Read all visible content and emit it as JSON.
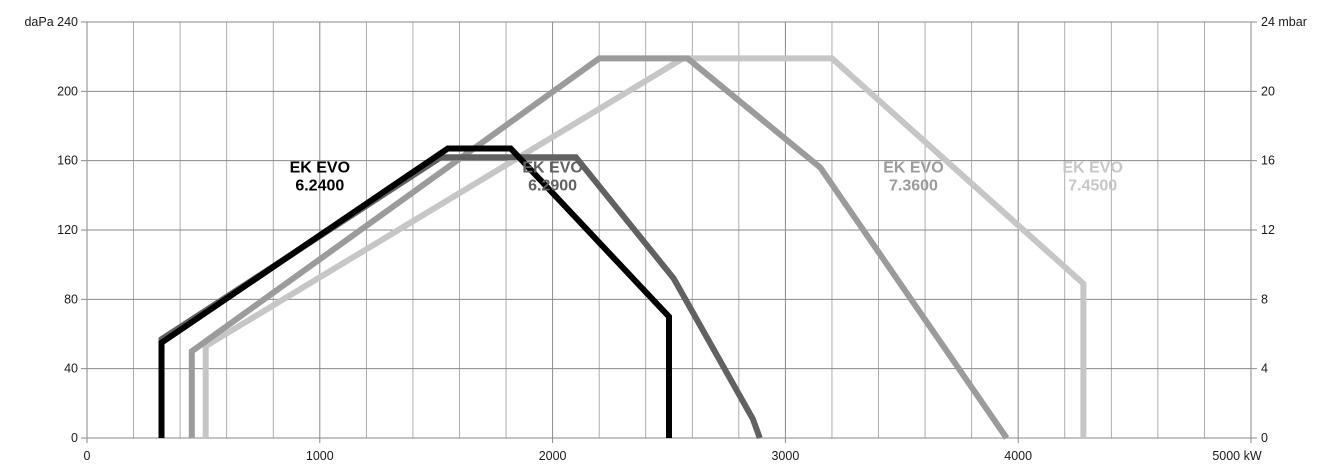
{
  "chart_data": {
    "type": "line",
    "title": "",
    "x_axis": {
      "range": [
        0,
        5000
      ],
      "ticks": [
        0,
        1000,
        2000,
        3000,
        4000,
        5000
      ],
      "tick_labels": [
        "0",
        "1000",
        "2000",
        "3000",
        "4000",
        "5000 kW"
      ],
      "minor_step": 200
    },
    "y_axis_left": {
      "range": [
        0,
        240
      ],
      "ticks": [
        0,
        40,
        80,
        120,
        160,
        200,
        240
      ],
      "tick_labels": [
        "0",
        "40",
        "80",
        "120",
        "160",
        "200",
        "daPa 240"
      ]
    },
    "y_axis_right": {
      "range": [
        0,
        24
      ],
      "ticks": [
        0,
        4,
        8,
        12,
        16,
        20,
        24
      ],
      "tick_labels": [
        "0",
        "4",
        "8",
        "12",
        "16",
        "20",
        "24 mbar"
      ]
    },
    "grid": true,
    "series": [
      {
        "name": "EK EVO 6.2400",
        "label_lines": [
          "EK EVO",
          "6.2400"
        ],
        "color": "#000000",
        "points": [
          [
            320,
            0
          ],
          [
            320,
            55
          ],
          [
            1550,
            167
          ],
          [
            1820,
            167
          ],
          [
            2500,
            70
          ],
          [
            2500,
            0
          ]
        ]
      },
      {
        "name": "EK EVO 6.2900",
        "label_lines": [
          "EK EVO",
          "6.2900"
        ],
        "color": "#616161",
        "points": [
          [
            320,
            0
          ],
          [
            320,
            57
          ],
          [
            1520,
            162
          ],
          [
            2100,
            162
          ],
          [
            2520,
            92
          ],
          [
            2860,
            11
          ],
          [
            2890,
            0
          ]
        ]
      },
      {
        "name": "EK EVO 7.3600",
        "label_lines": [
          "EK EVO",
          "7.3600"
        ],
        "color": "#9b9b9b",
        "points": [
          [
            450,
            0
          ],
          [
            450,
            50
          ],
          [
            2200,
            219
          ],
          [
            2580,
            219
          ],
          [
            3150,
            156
          ],
          [
            3950,
            0
          ]
        ]
      },
      {
        "name": "EK EVO 7.4500",
        "label_lines": [
          "EK EVO",
          "7.4500"
        ],
        "color": "#c6c6c6",
        "points": [
          [
            510,
            0
          ],
          [
            510,
            53
          ],
          [
            2560,
            219
          ],
          [
            3200,
            219
          ],
          [
            4280,
            89
          ],
          [
            4280,
            0
          ]
        ]
      }
    ]
  }
}
